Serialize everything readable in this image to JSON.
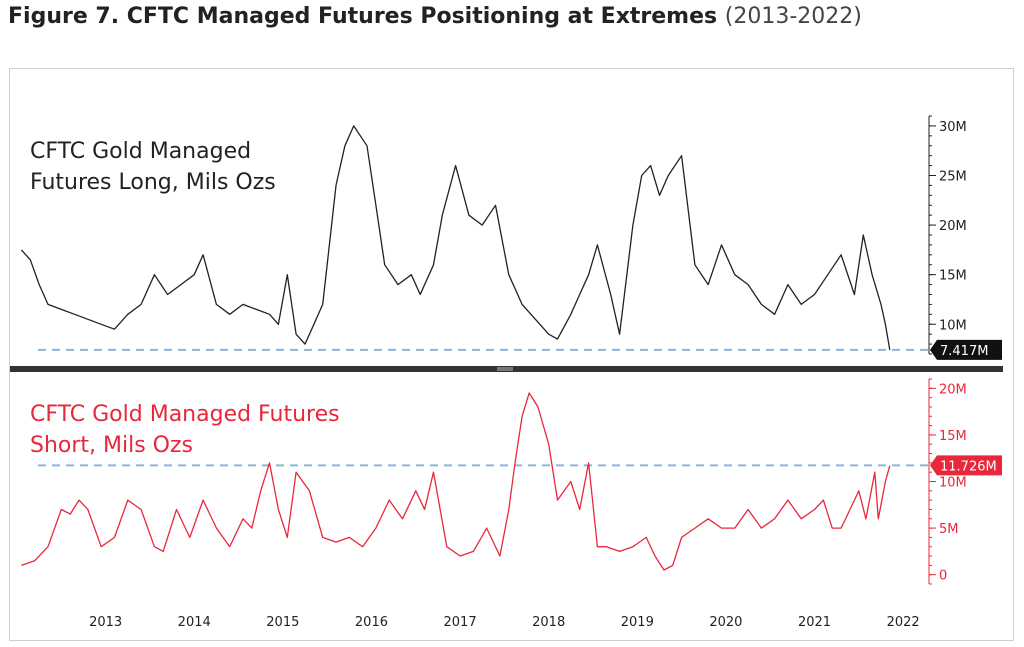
{
  "figure": {
    "title_bold": "Figure 7. CFTC Managed Futures Positioning at Extremes",
    "title_light": "(2013-2022)"
  },
  "colors": {
    "long_line": "#222222",
    "short_line": "#e8283a",
    "reference_dash": "#8fb3dc",
    "divider": "#333333",
    "long_badge": "#111111",
    "short_badge": "#e8283a"
  },
  "chart_data": [
    {
      "type": "line",
      "title": "CFTC Gold Managed Futures Long, Mils Ozs",
      "title_lines": [
        "CFTC Gold Managed",
        "Futures Long, Mils Ozs"
      ],
      "x_labels": [
        "2013",
        "2014",
        "2015",
        "2016",
        "2017",
        "2018",
        "2019",
        "2020",
        "2021",
        "2022"
      ],
      "x_range": [
        2012.5,
        2022.6
      ],
      "ylim": [
        7,
        31
      ],
      "yticks": [
        10,
        15,
        20,
        25,
        30
      ],
      "ytick_labels": [
        "10M",
        "15M",
        "20M",
        "25M",
        "30M"
      ],
      "reference_value": 7.417,
      "last_value_label": "7.417M",
      "series": [
        {
          "name": "Long",
          "x": [
            2012.55,
            2012.65,
            2012.75,
            2012.85,
            2013.0,
            2013.15,
            2013.3,
            2013.45,
            2013.6,
            2013.75,
            2013.9,
            2014.05,
            2014.2,
            2014.35,
            2014.5,
            2014.6,
            2014.75,
            2014.9,
            2015.05,
            2015.2,
            2015.35,
            2015.45,
            2015.55,
            2015.65,
            2015.75,
            2015.85,
            2015.95,
            2016.05,
            2016.1,
            2016.2,
            2016.3,
            2016.45,
            2016.55,
            2016.65,
            2016.8,
            2016.95,
            2017.05,
            2017.2,
            2017.3,
            2017.45,
            2017.6,
            2017.75,
            2017.9,
            2018.05,
            2018.2,
            2018.35,
            2018.5,
            2018.6,
            2018.75,
            2018.85,
            2018.95,
            2019.05,
            2019.2,
            2019.3,
            2019.45,
            2019.55,
            2019.65,
            2019.75,
            2019.85,
            2020.0,
            2020.15,
            2020.3,
            2020.45,
            2020.6,
            2020.75,
            2020.9,
            2021.05,
            2021.2,
            2021.35,
            2021.5,
            2021.65,
            2021.8,
            2021.95,
            2022.05,
            2022.15,
            2022.25,
            2022.3,
            2022.35
          ],
          "values": [
            17.5,
            16.5,
            14,
            12,
            11.5,
            11,
            10.5,
            10,
            9.5,
            11,
            12,
            15,
            13,
            14,
            15,
            17,
            12,
            11,
            12,
            11.5,
            11,
            10,
            15,
            9,
            8,
            10,
            12,
            20,
            24,
            28,
            30,
            28,
            22,
            16,
            14,
            15,
            13,
            16,
            21,
            26,
            21,
            20,
            22,
            15,
            12,
            10.5,
            9,
            8.5,
            11,
            13,
            15,
            18,
            13,
            9,
            20,
            25,
            26,
            23,
            25,
            27,
            16,
            14,
            18,
            15,
            14,
            12,
            11,
            14,
            12,
            13,
            15,
            17,
            13,
            19,
            15,
            12,
            10,
            7.4
          ]
        }
      ]
    },
    {
      "type": "line",
      "title": "CFTC Gold Managed Futures Short, Mils Ozs",
      "title_lines": [
        "CFTC Gold Managed Futures",
        "Short, Mils Ozs"
      ],
      "x_labels": [
        "2013",
        "2014",
        "2015",
        "2016",
        "2017",
        "2018",
        "2019",
        "2020",
        "2021",
        "2022"
      ],
      "x_range": [
        2012.5,
        2022.6
      ],
      "ylim": [
        -1,
        21
      ],
      "yticks": [
        0,
        5,
        10,
        15,
        20
      ],
      "ytick_labels": [
        "0",
        "5M",
        "10M",
        "15M",
        "20M"
      ],
      "reference_value": 11.726,
      "last_value_label": "11.726M",
      "series": [
        {
          "name": "Short",
          "x": [
            2012.55,
            2012.7,
            2012.85,
            2013.0,
            2013.1,
            2013.2,
            2013.3,
            2013.45,
            2013.6,
            2013.75,
            2013.9,
            2014.05,
            2014.15,
            2014.3,
            2014.45,
            2014.6,
            2014.75,
            2014.9,
            2015.05,
            2015.15,
            2015.25,
            2015.35,
            2015.45,
            2015.55,
            2015.65,
            2015.8,
            2015.95,
            2016.1,
            2016.25,
            2016.4,
            2016.55,
            2016.7,
            2016.85,
            2017.0,
            2017.1,
            2017.2,
            2017.35,
            2017.5,
            2017.65,
            2017.8,
            2017.95,
            2018.05,
            2018.12,
            2018.2,
            2018.28,
            2018.38,
            2018.5,
            2018.6,
            2018.75,
            2018.85,
            2018.95,
            2019.05,
            2019.15,
            2019.3,
            2019.45,
            2019.6,
            2019.7,
            2019.8,
            2019.9,
            2020.0,
            2020.15,
            2020.3,
            2020.45,
            2020.6,
            2020.75,
            2020.9,
            2021.05,
            2021.2,
            2021.35,
            2021.5,
            2021.6,
            2021.7,
            2021.8,
            2021.9,
            2022.0,
            2022.08,
            2022.12,
            2022.18,
            2022.22,
            2022.3,
            2022.35
          ],
          "values": [
            1,
            1.5,
            3,
            7,
            6.5,
            8,
            7,
            3,
            4,
            8,
            7,
            3,
            2.5,
            7,
            4,
            8,
            5,
            3,
            6,
            5,
            9,
            12,
            7,
            4,
            11,
            9,
            4,
            3.5,
            4,
            3,
            5,
            8,
            6,
            9,
            7,
            11,
            3,
            2,
            2.5,
            5,
            2,
            7,
            12,
            17,
            19.5,
            18,
            14,
            8,
            10,
            7,
            12,
            3,
            3,
            2.5,
            3,
            4,
            2,
            0.5,
            1,
            4,
            5,
            6,
            5,
            5,
            7,
            5,
            6,
            8,
            6,
            7,
            8,
            5,
            5,
            7,
            9,
            6,
            8,
            11,
            6,
            10,
            11.7
          ]
        }
      ]
    }
  ]
}
